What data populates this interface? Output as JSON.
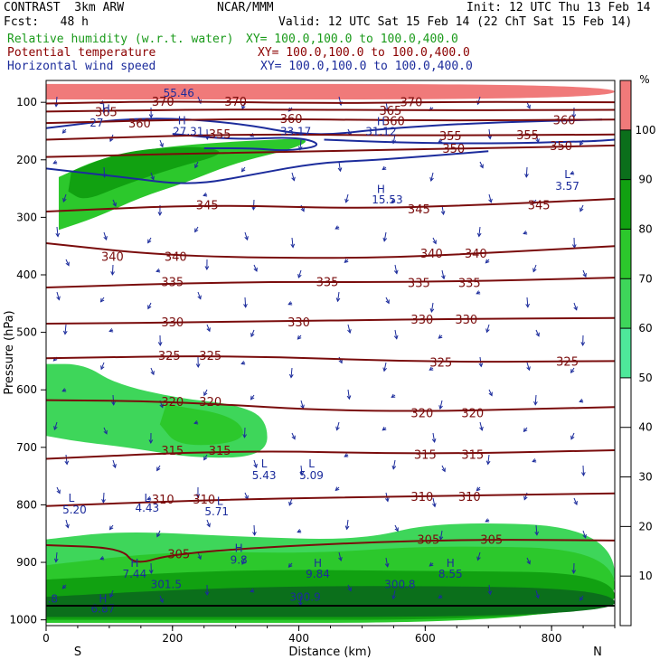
{
  "header": {
    "title": "CONTRAST  3km ARW",
    "source": "NCAR/MMM",
    "init": "Init: 12 UTC Thu 13 Feb 14",
    "fcst": "Fcst:   48 h",
    "valid": "Valid: 12 UTC Sat 15 Feb 14 (22 ChT Sat 15 Feb 14)",
    "fields": [
      {
        "name": "Relative humidity (w.r.t. water)",
        "xy": "XY= 100.0,100.0 to 100.0,400.0",
        "color": "#1a9a1a"
      },
      {
        "name": "Potential temperature",
        "xy": "XY= 100.0,100.0 to 100.0,400.0",
        "color": "#8b0000"
      },
      {
        "name": "Horizontal wind speed",
        "xy": "XY= 100.0,100.0 to 100.0,400.0",
        "color": "#1c2c9c"
      }
    ]
  },
  "chart_data": {
    "type": "cross-section",
    "xlabel": "Distance (km)",
    "ylabel": "Pressure (hPa)",
    "xlim": [
      0,
      900
    ],
    "ylim": [
      1010,
      62
    ],
    "xticks": [
      0,
      200,
      400,
      600,
      800
    ],
    "yticks": [
      100,
      200,
      300,
      400,
      500,
      600,
      700,
      800,
      900,
      1000
    ],
    "x_ends": [
      "S",
      "N"
    ],
    "colorbar": {
      "unit": "%",
      "ticks": [
        10,
        20,
        30,
        40,
        50,
        60,
        70,
        80,
        90,
        100
      ],
      "bands": [
        {
          "from": 50,
          "to": 60,
          "color": "#4ee89a"
        },
        {
          "from": 60,
          "to": 70,
          "color": "#3ed65a"
        },
        {
          "from": 70,
          "to": 80,
          "color": "#2cc82c"
        },
        {
          "from": 80,
          "to": 90,
          "color": "#11a111"
        },
        {
          "from": 90,
          "to": 100,
          "color": "#0b6f1b"
        },
        {
          "from": 100,
          "to": 110,
          "color": "#f07a7a"
        }
      ]
    },
    "rh_regions": [
      {
        "level": 70,
        "points": [
          [
            20,
            230
          ],
          [
            90,
            195
          ],
          [
            200,
            175
          ],
          [
            350,
            165
          ],
          [
            420,
            163
          ],
          [
            395,
            180
          ],
          [
            300,
            205
          ],
          [
            220,
            240
          ],
          [
            150,
            265
          ],
          [
            80,
            300
          ],
          [
            20,
            322
          ]
        ]
      },
      {
        "level": 80,
        "points": [
          [
            40,
            220
          ],
          [
            120,
            185
          ],
          [
            240,
            175
          ],
          [
            290,
            188
          ],
          [
            200,
            215
          ],
          [
            120,
            245
          ],
          [
            60,
            272
          ],
          [
            35,
            255
          ]
        ]
      },
      {
        "level": 60,
        "points": [
          [
            0,
            555
          ],
          [
            60,
            555
          ],
          [
            110,
            590
          ],
          [
            210,
            615
          ],
          [
            300,
            625
          ],
          [
            350,
            650
          ],
          [
            350,
            715
          ],
          [
            240,
            720
          ],
          [
            130,
            700
          ],
          [
            50,
            690
          ],
          [
            0,
            680
          ]
        ]
      },
      {
        "level": 70,
        "points": [
          [
            190,
            625
          ],
          [
            300,
            645
          ],
          [
            320,
            690
          ],
          [
            210,
            700
          ],
          [
            180,
            660
          ]
        ]
      },
      {
        "level": 60,
        "points": [
          [
            0,
            860
          ],
          [
            120,
            845
          ],
          [
            300,
            855
          ],
          [
            500,
            862
          ],
          [
            620,
            828
          ],
          [
            900,
            840
          ],
          [
            900,
            1005
          ],
          [
            0,
            1005
          ]
        ]
      },
      {
        "level": 70,
        "points": [
          [
            0,
            905
          ],
          [
            200,
            880
          ],
          [
            420,
            885
          ],
          [
            620,
            870
          ],
          [
            900,
            878
          ],
          [
            900,
            1005
          ],
          [
            0,
            1005
          ]
        ]
      },
      {
        "level": 80,
        "points": [
          [
            0,
            930
          ],
          [
            300,
            912
          ],
          [
            600,
            915
          ],
          [
            900,
            918
          ],
          [
            900,
            1000
          ],
          [
            0,
            1000
          ]
        ]
      },
      {
        "level": 90,
        "points": [
          [
            0,
            960
          ],
          [
            250,
            945
          ],
          [
            500,
            940
          ],
          [
            900,
            945
          ],
          [
            900,
            995
          ],
          [
            0,
            995
          ]
        ]
      },
      {
        "level": 100,
        "points": [
          [
            0,
            68
          ],
          [
            900,
            68
          ],
          [
            900,
            95
          ],
          [
            0,
            95
          ]
        ]
      }
    ],
    "theta_contours": [
      {
        "value": 370,
        "points": [
          [
            0,
            102
          ],
          [
            200,
            98
          ],
          [
            450,
            102
          ],
          [
            650,
            99
          ],
          [
            900,
            100
          ]
        ],
        "labels": [
          [
            185,
            370
          ],
          [
            300,
            370
          ],
          [
            578,
            370
          ]
        ]
      },
      {
        "value": 365,
        "points": [
          [
            0,
            116
          ],
          [
            300,
            112
          ],
          [
            600,
            114
          ],
          [
            900,
            113
          ]
        ],
        "labels": [
          [
            95,
            365
          ],
          [
            545,
            365
          ]
        ]
      },
      {
        "value": 360,
        "points": [
          [
            0,
            136
          ],
          [
            300,
            128
          ],
          [
            600,
            132
          ],
          [
            900,
            130
          ]
        ],
        "labels": [
          [
            148,
            360
          ],
          [
            388,
            360
          ],
          [
            550,
            360
          ],
          [
            820,
            360
          ]
        ]
      },
      {
        "value": 355,
        "points": [
          [
            0,
            165
          ],
          [
            300,
            155
          ],
          [
            600,
            158
          ],
          [
            900,
            156
          ]
        ],
        "labels": [
          [
            275,
            355
          ],
          [
            640,
            355
          ],
          [
            762,
            355
          ]
        ]
      },
      {
        "value": 350,
        "points": [
          [
            0,
            195
          ],
          [
            400,
            185
          ],
          [
            700,
            180
          ],
          [
            900,
            175
          ]
        ],
        "labels": [
          [
            645,
            350
          ],
          [
            815,
            350
          ]
        ]
      },
      {
        "value": 345,
        "points": [
          [
            0,
            290
          ],
          [
            250,
            278
          ],
          [
            500,
            285
          ],
          [
            700,
            278
          ],
          [
            900,
            268
          ]
        ],
        "labels": [
          [
            255,
            345
          ],
          [
            590,
            345
          ],
          [
            780,
            345
          ]
        ]
      },
      {
        "value": 340,
        "points": [
          [
            0,
            345
          ],
          [
            200,
            368
          ],
          [
            500,
            372
          ],
          [
            700,
            362
          ],
          [
            900,
            350
          ]
        ],
        "labels": [
          [
            105,
            340
          ],
          [
            205,
            340
          ],
          [
            610,
            340
          ],
          [
            680,
            340
          ]
        ]
      },
      {
        "value": 335,
        "points": [
          [
            0,
            422
          ],
          [
            300,
            412
          ],
          [
            600,
            413
          ],
          [
            900,
            405
          ]
        ],
        "labels": [
          [
            200,
            335
          ],
          [
            445,
            335
          ],
          [
            590,
            335
          ],
          [
            670,
            335
          ]
        ]
      },
      {
        "value": 330,
        "points": [
          [
            0,
            485
          ],
          [
            300,
            482
          ],
          [
            600,
            477
          ],
          [
            900,
            475
          ]
        ],
        "labels": [
          [
            200,
            330
          ],
          [
            400,
            330
          ],
          [
            595,
            330
          ],
          [
            665,
            330
          ]
        ]
      },
      {
        "value": 325,
        "points": [
          [
            0,
            545
          ],
          [
            300,
            540
          ],
          [
            600,
            552
          ],
          [
            900,
            550
          ]
        ],
        "labels": [
          [
            195,
            325
          ],
          [
            260,
            325
          ],
          [
            625,
            325
          ],
          [
            825,
            325
          ]
        ]
      },
      {
        "value": 320,
        "points": [
          [
            0,
            618
          ],
          [
            200,
            620
          ],
          [
            500,
            640
          ],
          [
            900,
            630
          ]
        ],
        "labels": [
          [
            200,
            320
          ],
          [
            260,
            320
          ],
          [
            595,
            320
          ],
          [
            675,
            320
          ]
        ]
      },
      {
        "value": 315,
        "points": [
          [
            0,
            720
          ],
          [
            300,
            705
          ],
          [
            600,
            712
          ],
          [
            900,
            705
          ]
        ],
        "labels": [
          [
            200,
            315
          ],
          [
            275,
            315
          ],
          [
            600,
            315
          ],
          [
            675,
            315
          ]
        ]
      },
      {
        "value": 310,
        "points": [
          [
            0,
            802
          ],
          [
            300,
            790
          ],
          [
            600,
            785
          ],
          [
            900,
            780
          ]
        ],
        "labels": [
          [
            185,
            310
          ],
          [
            250,
            310
          ],
          [
            595,
            310
          ],
          [
            670,
            310
          ]
        ]
      },
      {
        "value": 305,
        "points": [
          [
            0,
            870
          ],
          [
            120,
            875
          ],
          [
            140,
            905
          ],
          [
            200,
            885
          ],
          [
            400,
            870
          ],
          [
            650,
            860
          ],
          [
            900,
            862
          ]
        ],
        "labels": [
          [
            210,
            305
          ],
          [
            605,
            305
          ],
          [
            705,
            305
          ]
        ]
      }
    ],
    "wind_contours": [
      {
        "points": [
          [
            0,
            145
          ],
          [
            150,
            125
          ],
          [
            300,
            135
          ],
          [
            420,
            160
          ],
          [
            540,
            145
          ],
          [
            700,
            135
          ],
          [
            880,
            130
          ]
        ]
      },
      {
        "points": [
          [
            200,
            155
          ],
          [
            300,
            165
          ],
          [
            400,
            160
          ],
          [
            440,
            175
          ],
          [
            380,
            185
          ],
          [
            330,
            180
          ],
          [
            250,
            180
          ]
        ]
      },
      {
        "points": [
          [
            440,
            165
          ],
          [
            560,
            170
          ],
          [
            700,
            172
          ],
          [
            860,
            168
          ],
          [
            900,
            165
          ]
        ]
      },
      {
        "points": [
          [
            0,
            215
          ],
          [
            120,
            230
          ],
          [
            230,
            245
          ],
          [
            330,
            225
          ],
          [
            430,
            205
          ],
          [
            530,
            200
          ],
          [
            700,
            185
          ]
        ]
      }
    ],
    "annotations": [
      {
        "text": "55.46",
        "x": 210,
        "y": 90
      },
      {
        "text": "H",
        "x": 95,
        "y": 118
      },
      {
        "text": "27",
        "x": 80,
        "y": 142
      },
      {
        "text": "H",
        "x": 215,
        "y": 138
      },
      {
        "text": "27.31",
        "x": 225,
        "y": 157
      },
      {
        "text": "33.17",
        "x": 395,
        "y": 157
      },
      {
        "text": "H",
        "x": 530,
        "y": 140
      },
      {
        "text": "31.12",
        "x": 530,
        "y": 157
      },
      {
        "text": "H",
        "x": 530,
        "y": 258
      },
      {
        "text": "15.53",
        "x": 540,
        "y": 276
      },
      {
        "text": "L",
        "x": 825,
        "y": 232
      },
      {
        "text": "3.57",
        "x": 825,
        "y": 252
      },
      {
        "text": "L",
        "x": 345,
        "y": 735
      },
      {
        "text": "5.43",
        "x": 345,
        "y": 755
      },
      {
        "text": "L",
        "x": 420,
        "y": 735
      },
      {
        "text": "5.09",
        "x": 420,
        "y": 755
      },
      {
        "text": "L",
        "x": 40,
        "y": 795
      },
      {
        "text": "5.20",
        "x": 45,
        "y": 815
      },
      {
        "text": "L",
        "x": 160,
        "y": 795
      },
      {
        "text": "4.43",
        "x": 160,
        "y": 812
      },
      {
        "text": "L",
        "x": 275,
        "y": 800
      },
      {
        "text": "5.71",
        "x": 270,
        "y": 818
      },
      {
        "text": "H",
        "x": 305,
        "y": 882
      },
      {
        "text": "9.8",
        "x": 305,
        "y": 902
      },
      {
        "text": "H",
        "x": 140,
        "y": 908
      },
      {
        "text": "7.44",
        "x": 140,
        "y": 927
      },
      {
        "text": "H",
        "x": 430,
        "y": 908
      },
      {
        "text": "9.84",
        "x": 430,
        "y": 927
      },
      {
        "text": "H",
        "x": 640,
        "y": 908
      },
      {
        "text": "8.55",
        "x": 640,
        "y": 927
      },
      {
        "text": "301.5",
        "x": 190,
        "y": 945
      },
      {
        "text": "300.9",
        "x": 410,
        "y": 967
      },
      {
        "text": "300.8",
        "x": 560,
        "y": 945
      },
      {
        "text": "H",
        "x": 90,
        "y": 970
      },
      {
        "text": "6.87",
        "x": 90,
        "y": 987
      },
      {
        "text": "1.8",
        "x": 5,
        "y": 970
      }
    ]
  }
}
